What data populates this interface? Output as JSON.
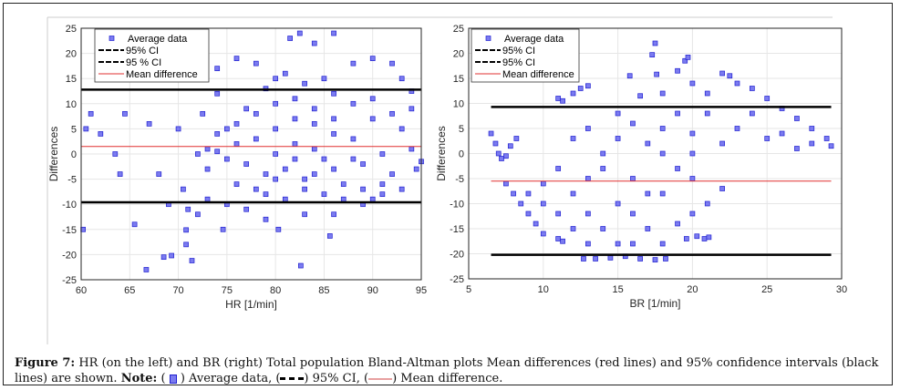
{
  "chart_data": [
    {
      "type": "scatter",
      "xlabel": "HR [1/min]",
      "ylabel": "Differences",
      "xlim": [
        60,
        95
      ],
      "ylim": [
        -25,
        25
      ],
      "xticks": [
        "60",
        "65",
        "70",
        "75",
        "80",
        "85",
        "90",
        "95"
      ],
      "yticks": [
        "-25",
        "-20",
        "-15",
        "-10",
        "-5",
        "0",
        "5",
        "10",
        "15",
        "20",
        "25"
      ],
      "grid": true,
      "legend_position": "top-left",
      "legend": [
        "Average data",
        "95% CI",
        "95 % CI",
        "Mean difference"
      ],
      "upper_ci": 12.8,
      "lower_ci": -9.6,
      "mean_difference": 1.5,
      "line_xrange": [
        60,
        95
      ],
      "points": [
        [
          60.2,
          -15
        ],
        [
          60.5,
          5
        ],
        [
          61,
          8
        ],
        [
          62,
          4
        ],
        [
          63.5,
          0
        ],
        [
          64,
          -4
        ],
        [
          64.5,
          8
        ],
        [
          65.5,
          -14
        ],
        [
          66.7,
          -23
        ],
        [
          67,
          6
        ],
        [
          68,
          -4
        ],
        [
          68.5,
          -20.5
        ],
        [
          69.3,
          -20.2
        ],
        [
          70,
          5
        ],
        [
          70.8,
          -15.1
        ],
        [
          70.8,
          -18
        ],
        [
          71.4,
          -21.2
        ],
        [
          74.6,
          -15
        ],
        [
          80.3,
          -15
        ],
        [
          82.6,
          -22.2
        ],
        [
          85.6,
          -16.3
        ],
        [
          81.5,
          23
        ],
        [
          82.5,
          24
        ],
        [
          84,
          22
        ],
        [
          86,
          24
        ],
        [
          70.5,
          -7
        ],
        [
          69,
          -10
        ],
        [
          71,
          -11
        ],
        [
          72,
          -12
        ],
        [
          73,
          -9
        ],
        [
          72.5,
          8
        ],
        [
          74,
          12
        ],
        [
          74,
          17
        ],
        [
          76,
          19
        ],
        [
          78,
          18
        ],
        [
          80,
          15
        ],
        [
          88,
          18
        ],
        [
          90,
          19
        ],
        [
          92,
          18
        ],
        [
          94,
          12.5
        ],
        [
          93,
          15
        ],
        [
          94.5,
          -3
        ],
        [
          91,
          -8
        ],
        [
          89,
          -10
        ],
        [
          86,
          -12
        ],
        [
          83,
          -12
        ],
        [
          79,
          -13
        ],
        [
          77,
          -11
        ],
        [
          75,
          -10
        ],
        [
          72,
          0
        ],
        [
          73,
          1
        ],
        [
          74,
          0.5
        ],
        [
          75,
          -1
        ],
        [
          76,
          2
        ],
        [
          77,
          -2
        ],
        [
          78,
          3
        ],
        [
          79,
          -4
        ],
        [
          80,
          5
        ],
        [
          81,
          -3
        ],
        [
          82,
          2
        ],
        [
          83,
          -5
        ],
        [
          84,
          6
        ],
        [
          85,
          -1
        ],
        [
          86,
          4
        ],
        [
          87,
          -6
        ],
        [
          88,
          3
        ],
        [
          89,
          -2
        ],
        [
          90,
          7
        ],
        [
          91,
          0
        ],
        [
          92,
          -4
        ],
        [
          93,
          5
        ],
        [
          94,
          1
        ],
        [
          95,
          -1.5
        ],
        [
          78,
          8
        ],
        [
          80,
          10
        ],
        [
          82,
          11
        ],
        [
          84,
          9
        ],
        [
          86,
          12
        ],
        [
          88,
          10
        ],
        [
          90,
          11
        ],
        [
          79,
          -8
        ],
        [
          81,
          -9
        ],
        [
          83,
          -7
        ],
        [
          85,
          -8
        ],
        [
          87,
          -9
        ],
        [
          89,
          -7
        ],
        [
          91,
          -6
        ],
        [
          76,
          6
        ],
        [
          77,
          9
        ],
        [
          75,
          5
        ],
        [
          76,
          -6
        ],
        [
          78,
          -7
        ],
        [
          80,
          0
        ],
        [
          82,
          -1
        ],
        [
          84,
          1
        ],
        [
          86,
          -3
        ],
        [
          88,
          -1
        ],
        [
          80,
          -5
        ],
        [
          84,
          -4
        ],
        [
          86,
          7
        ],
        [
          82,
          7
        ],
        [
          90,
          -9
        ],
        [
          93,
          -7
        ],
        [
          92,
          8
        ],
        [
          94,
          9
        ],
        [
          73,
          -3
        ],
        [
          74,
          4
        ],
        [
          83,
          14
        ],
        [
          81,
          16
        ],
        [
          85,
          15
        ],
        [
          79,
          13
        ]
      ]
    },
    {
      "type": "scatter",
      "xlabel": "BR [1/min]",
      "ylabel": "Differences",
      "xlim": [
        5,
        30
      ],
      "ylim": [
        -25,
        25
      ],
      "xticks": [
        "5",
        "10",
        "15",
        "20",
        "25",
        "30"
      ],
      "yticks": [
        "-25",
        "-20",
        "-15",
        "-10",
        "-5",
        "0",
        "5",
        "10",
        "15",
        "20",
        "25"
      ],
      "grid": true,
      "legend_position": "top-left",
      "legend": [
        "Average data",
        "95% CI",
        "95% CI",
        "Mean difference"
      ],
      "upper_ci": 9.3,
      "lower_ci": -20.2,
      "mean_difference": -5.5,
      "line_xrange": [
        6.5,
        29.3
      ],
      "points": [
        [
          6.5,
          4
        ],
        [
          6.8,
          2
        ],
        [
          7,
          0
        ],
        [
          7.2,
          -1
        ],
        [
          7.5,
          -0.5
        ],
        [
          7.8,
          1.5
        ],
        [
          8.2,
          3
        ],
        [
          7.5,
          -6
        ],
        [
          8,
          -8
        ],
        [
          8.5,
          -10
        ],
        [
          9,
          -12
        ],
        [
          9.5,
          -14
        ],
        [
          10,
          -16
        ],
        [
          11,
          -17
        ],
        [
          11.3,
          -17.5
        ],
        [
          12.7,
          -21
        ],
        [
          13.5,
          -21
        ],
        [
          14.5,
          -20.8
        ],
        [
          15.5,
          -20.5
        ],
        [
          16.5,
          -21
        ],
        [
          17.5,
          -21.2
        ],
        [
          18.2,
          -21
        ],
        [
          19.6,
          -17
        ],
        [
          20.3,
          -16.5
        ],
        [
          20.8,
          -17
        ],
        [
          21.1,
          -16.7
        ],
        [
          11,
          11
        ],
        [
          11.3,
          10.5
        ],
        [
          12,
          12
        ],
        [
          12.5,
          13
        ],
        [
          13,
          13.5
        ],
        [
          15.8,
          15.5
        ],
        [
          16.5,
          11.5
        ],
        [
          17.3,
          19.7
        ],
        [
          17.5,
          22
        ],
        [
          17.6,
          15.8
        ],
        [
          18,
          12
        ],
        [
          19,
          16.5
        ],
        [
          19.5,
          18.5
        ],
        [
          19.7,
          19.2
        ],
        [
          20,
          14
        ],
        [
          21,
          12
        ],
        [
          22,
          16
        ],
        [
          22.5,
          15.5
        ],
        [
          23,
          14
        ],
        [
          24,
          13
        ],
        [
          25,
          11
        ],
        [
          26,
          9
        ],
        [
          27,
          7
        ],
        [
          28,
          5
        ],
        [
          29,
          3
        ],
        [
          29.3,
          1.5
        ],
        [
          23,
          5
        ],
        [
          25,
          3
        ],
        [
          27,
          1
        ],
        [
          22,
          2
        ],
        [
          24,
          8
        ],
        [
          26,
          4
        ],
        [
          28,
          2
        ],
        [
          21,
          8
        ],
        [
          20,
          0
        ],
        [
          14,
          0
        ],
        [
          13,
          -5
        ],
        [
          12,
          -8
        ],
        [
          11,
          -3
        ],
        [
          10,
          -6
        ],
        [
          15,
          -10
        ],
        [
          16,
          -5
        ],
        [
          17,
          -15
        ],
        [
          18,
          -8
        ],
        [
          19,
          -3
        ],
        [
          14,
          -15
        ],
        [
          13,
          -12
        ],
        [
          16,
          -18
        ],
        [
          18,
          -18
        ],
        [
          15,
          3
        ],
        [
          16,
          6
        ],
        [
          18,
          5
        ],
        [
          19,
          8
        ],
        [
          17,
          2
        ],
        [
          12,
          -15
        ],
        [
          20,
          -5
        ],
        [
          21,
          -10
        ],
        [
          22,
          -7
        ],
        [
          20,
          -12
        ],
        [
          14,
          -3
        ],
        [
          15,
          -18
        ],
        [
          17,
          -8
        ],
        [
          13,
          -18
        ],
        [
          19,
          -14
        ],
        [
          16,
          -12
        ],
        [
          11,
          -12
        ],
        [
          10,
          -10
        ],
        [
          9,
          -8
        ],
        [
          18,
          0
        ],
        [
          20,
          4
        ],
        [
          15,
          8
        ],
        [
          13,
          5
        ],
        [
          12,
          3
        ]
      ]
    }
  ],
  "caption": {
    "figure_label": "Figure 7:",
    "text": " HR (on the left) and BR (right) Total population Bland-Altman plots Mean differences (red lines) and 95% confidence intervals (black lines) are shown. ",
    "note_label": "Note:",
    "note_avg": " ) Average data, (",
    "note_ci": ") 95% CI, (",
    "note_mean": ") Mean difference.",
    "open_paren": "( "
  },
  "colors": {
    "marker": "#7b7bf0",
    "marker_edge": "#2020d0",
    "mean": "#e03030",
    "ci": "#000000",
    "grid": "#e6e6e6"
  }
}
